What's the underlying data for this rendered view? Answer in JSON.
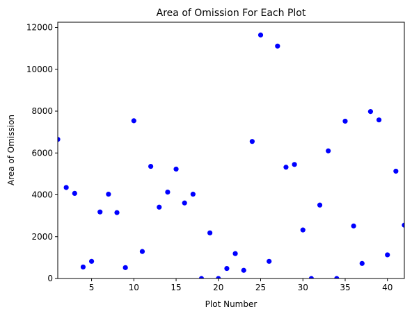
{
  "chart_data": {
    "type": "scatter",
    "title": "Area of Omission For Each Plot",
    "xlabel": "Plot Number",
    "ylabel": "Area of Omission",
    "xlim": [
      1,
      42
    ],
    "ylim": [
      0,
      12250
    ],
    "xticks": [
      5,
      10,
      15,
      20,
      25,
      30,
      35,
      40
    ],
    "yticks": [
      0,
      2000,
      4000,
      6000,
      8000,
      10000,
      12000
    ],
    "grid": false,
    "marker_color": "#0000ff",
    "series": [
      {
        "x": [
          1,
          2,
          3,
          4,
          5,
          6,
          7,
          8,
          9,
          10,
          11,
          12,
          13,
          14,
          15,
          16,
          17,
          18,
          19,
          20,
          21,
          22,
          23,
          24,
          25,
          26,
          27,
          28,
          29,
          30,
          31,
          32,
          33,
          34,
          35,
          36,
          37,
          38,
          39,
          40,
          41,
          42
        ],
        "y": [
          6650,
          4350,
          4070,
          550,
          820,
          3180,
          4030,
          3150,
          520,
          7540,
          1290,
          5360,
          3410,
          4130,
          5230,
          3610,
          4030,
          0,
          2180,
          0,
          480,
          1190,
          390,
          6550,
          11640,
          820,
          11110,
          5320,
          5450,
          2320,
          0,
          3510,
          6100,
          0,
          7520,
          2510,
          720,
          7980,
          7580,
          1130,
          5130,
          2550
        ]
      }
    ]
  }
}
